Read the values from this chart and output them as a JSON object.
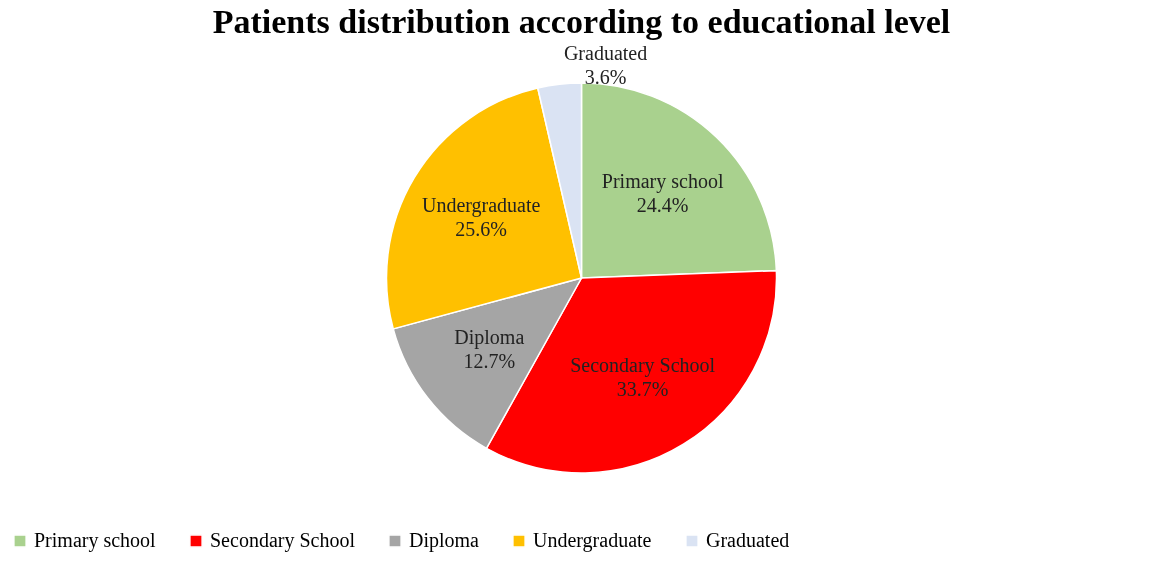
{
  "chart_data": {
    "type": "pie",
    "title": "Patients distribution according to educational level",
    "categories": [
      "Primary school",
      "Secondary School",
      "Diploma",
      "Undergraduate",
      "Graduated"
    ],
    "values": [
      24.4,
      33.7,
      12.7,
      25.6,
      3.6
    ],
    "value_labels": [
      "24.4%",
      "33.7%",
      "12.7%",
      "25.6%",
      "3.6%"
    ],
    "colors": [
      "#a9d18e",
      "#ff0000",
      "#a5a5a5",
      "#ffc000",
      "#dae3f3"
    ],
    "legend": "bottom"
  }
}
